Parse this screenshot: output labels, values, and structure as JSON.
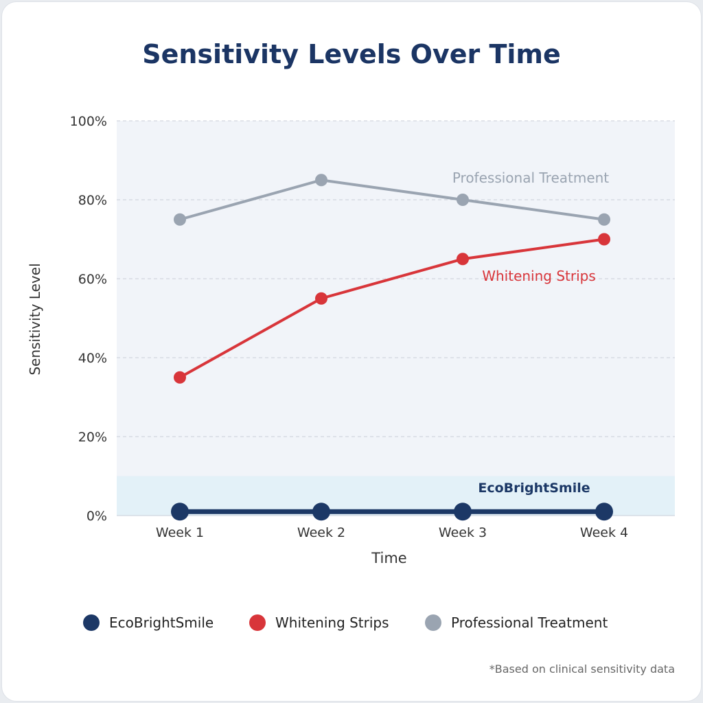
{
  "chart_data": {
    "type": "line",
    "title": "Sensitivity Levels Over Time",
    "xlabel": "Time",
    "ylabel": "Sensitivity Level",
    "categories": [
      "Week 1",
      "Week 2",
      "Week 3",
      "Week 4"
    ],
    "ylim": [
      0,
      100
    ],
    "yticks": [
      "0%",
      "20%",
      "40%",
      "60%",
      "80%",
      "100%"
    ],
    "grid": true,
    "highlight_band": [
      0,
      10
    ],
    "legend_position": "bottom",
    "series": [
      {
        "name": "EcoBrightSmile",
        "values": [
          1,
          1,
          1,
          1
        ],
        "color": "#1c3866"
      },
      {
        "name": "Whitening Strips",
        "values": [
          35,
          55,
          65,
          70
        ],
        "color": "#d8353a"
      },
      {
        "name": "Professional Treatment",
        "values": [
          75,
          85,
          80,
          75
        ],
        "color": "#9aa4b1"
      }
    ],
    "footnote": "*Based on clinical sensitivity data"
  }
}
